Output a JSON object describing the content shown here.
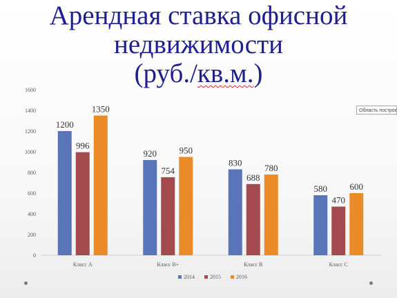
{
  "slide": {
    "title_line1": "Арендная ставка офисной",
    "title_line2": "недвижимости",
    "title_line3_pre": "(руб./",
    "title_line3_underlined": "кв.м.",
    "title_line3_post": ")",
    "tooltip": "Область построения",
    "colors": {
      "title": "#1f1f8f",
      "series": [
        "#5a74b9",
        "#a24a4e",
        "#eb8b27"
      ]
    }
  },
  "chart_data": {
    "type": "bar",
    "categories": [
      "Класс А",
      "Класс В+",
      "Класс В",
      "Класс С"
    ],
    "series": [
      {
        "name": "2014",
        "values": [
          1200,
          920,
          830,
          580
        ],
        "color": "#5a74b9"
      },
      {
        "name": "2015",
        "values": [
          996,
          754,
          688,
          470
        ],
        "color": "#a24a4e"
      },
      {
        "name": "2016",
        "values": [
          1350,
          950,
          780,
          600
        ],
        "color": "#eb8b27"
      }
    ],
    "ylim": [
      0,
      1600
    ],
    "yticks": [
      0,
      200,
      400,
      600,
      800,
      1000,
      1200,
      1400,
      1600
    ],
    "grid": false,
    "legend_position": "bottom",
    "data_labels": true
  }
}
